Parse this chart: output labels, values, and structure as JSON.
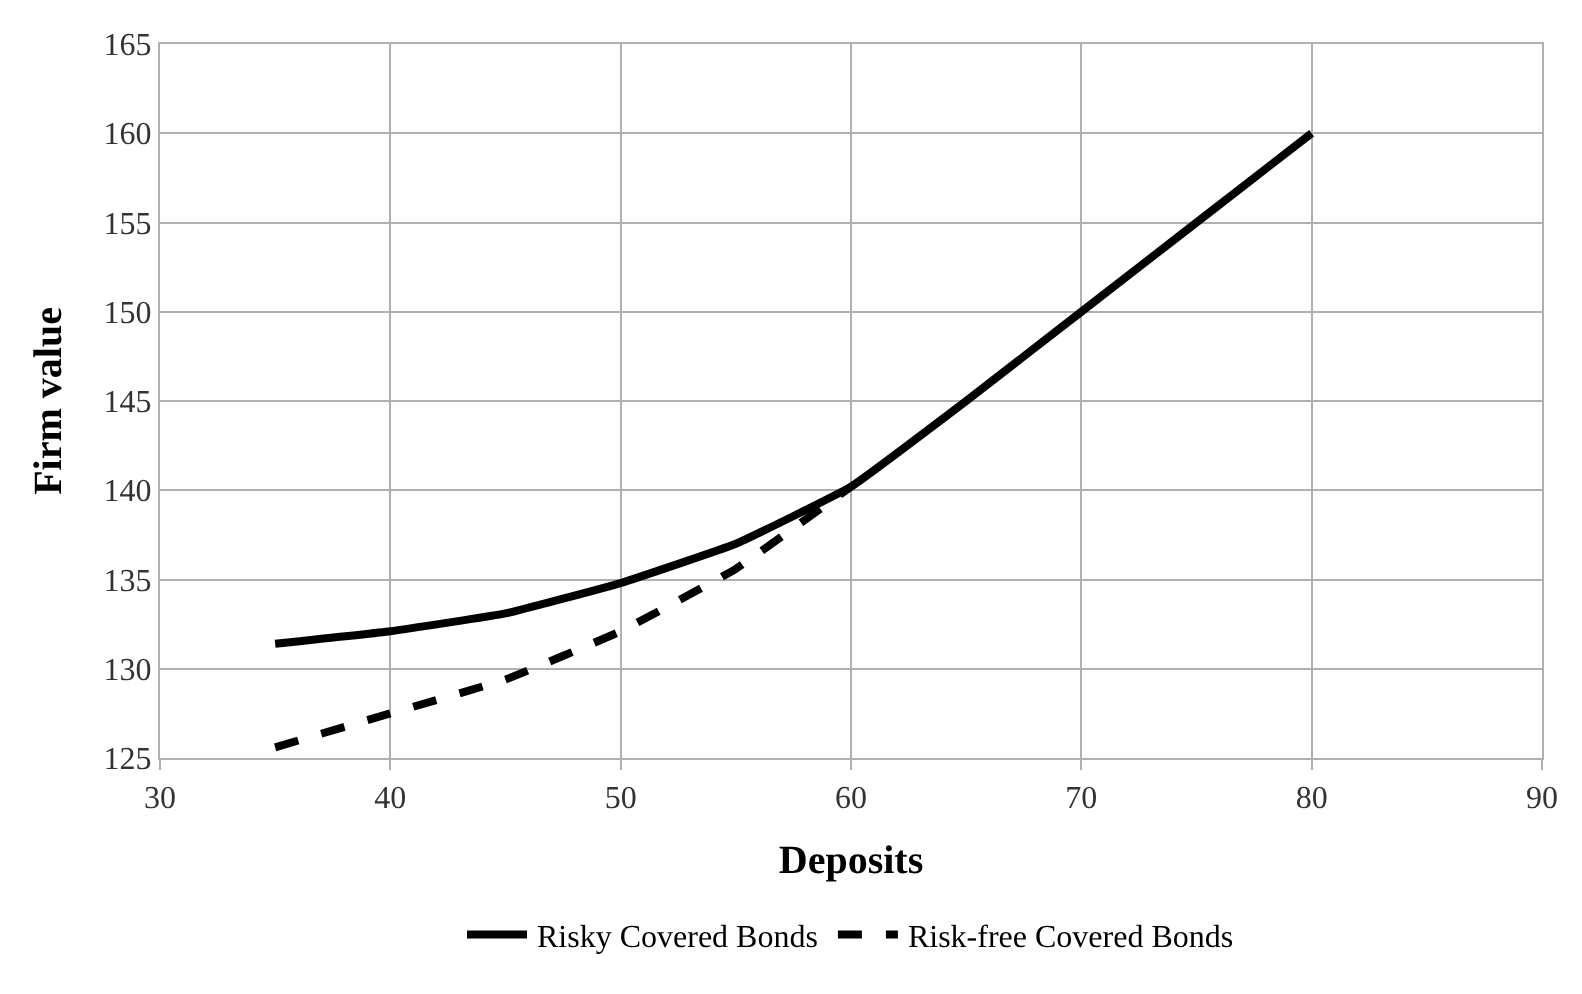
{
  "chart_data": {
    "type": "line",
    "xlabel": "Deposits",
    "ylabel": "Firm value",
    "xlim": [
      30,
      90
    ],
    "xticks": [
      30,
      40,
      50,
      60,
      70,
      80,
      90
    ],
    "ylim": [
      125,
      165
    ],
    "yticks": [
      125,
      130,
      135,
      140,
      145,
      150,
      155,
      160,
      165
    ],
    "grid": true,
    "legend": "bottom",
    "marker": "none",
    "series": [
      {
        "name": "Risky Covered Bonds",
        "color": "#000000",
        "line_style": "solid",
        "x": [
          35,
          40,
          45,
          50,
          55,
          60,
          65,
          70,
          75,
          80
        ],
        "values": [
          131.4,
          132.1,
          133.1,
          134.8,
          137.0,
          140.2,
          145,
          150,
          155,
          160
        ]
      },
      {
        "name": "Risk-free Covered Bonds",
        "color": "#000000",
        "line_style": "dashed",
        "x": [
          35,
          40,
          45,
          50,
          55,
          60
        ],
        "values": [
          125.6,
          127.5,
          129.4,
          132.1,
          135.6,
          140.2
        ]
      }
    ]
  }
}
